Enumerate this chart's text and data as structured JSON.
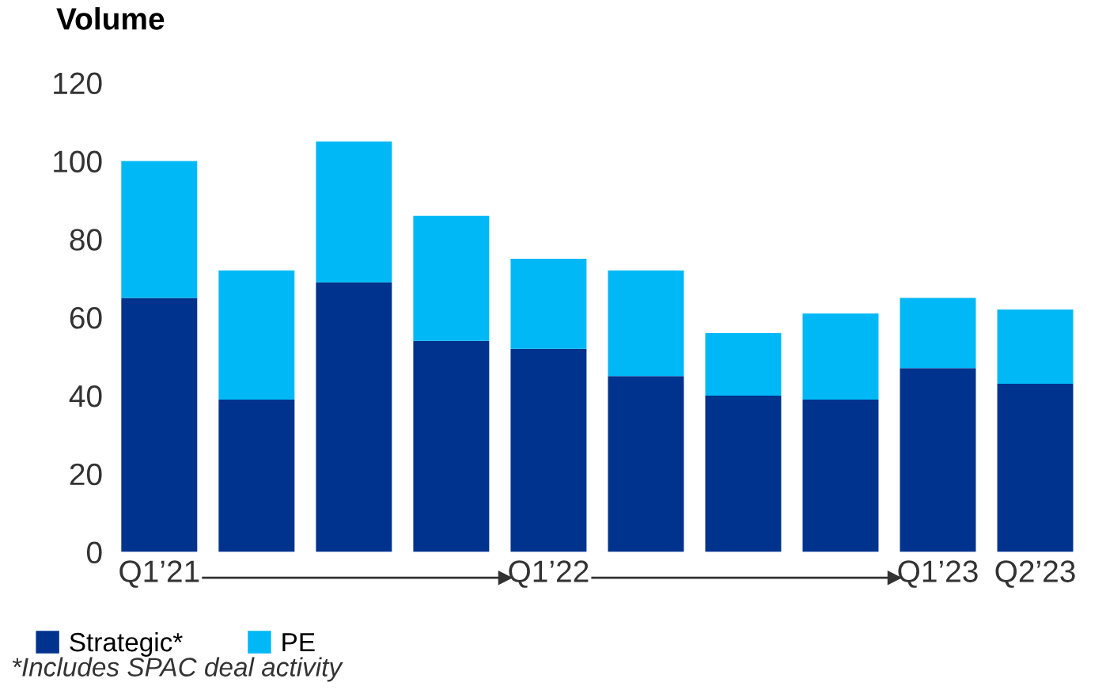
{
  "chart_data": {
    "type": "bar",
    "stacked": true,
    "ylabel": "Volume",
    "categories": [
      "Q1’21",
      null,
      null,
      null,
      "Q1’22",
      null,
      null,
      null,
      "Q1’23",
      "Q2’23"
    ],
    "series": [
      {
        "name": "Strategic*",
        "color": "#00338d",
        "values": [
          65,
          39,
          69,
          54,
          52,
          45,
          40,
          39,
          47,
          43
        ]
      },
      {
        "name": "PE",
        "color": "#00b8f5",
        "values": [
          35,
          33,
          36,
          32,
          23,
          27,
          16,
          22,
          18,
          19
        ]
      }
    ],
    "ylim": [
      0,
      120
    ],
    "yticks": [
      0,
      20,
      40,
      60,
      80,
      100,
      120
    ],
    "grid": false,
    "legend": "bottom left",
    "annotations": [
      "*Includes SPAC deal activity"
    ]
  }
}
